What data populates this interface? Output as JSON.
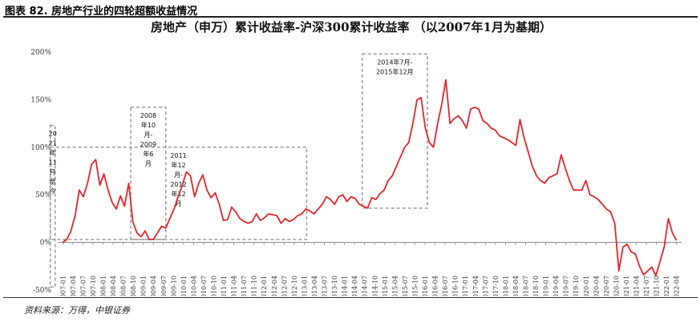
{
  "header": {
    "figure_title": "图表 82. 房地产行业的四轮超额收益情况"
  },
  "footer": {
    "source": "资料来源：万得，中银证券"
  },
  "colors": {
    "line": "#e0262b",
    "box": "#999999"
  },
  "chart_data": {
    "type": "line",
    "title": "房地产（申万）累计收益率-沪深300累计收益率   （以2007年1月为基期）",
    "y_tick_labels": [
      "-50%",
      "0%",
      "50%",
      "100%",
      "150%",
      "200%"
    ],
    "ylim": [
      -0.5,
      2.0
    ],
    "x_tick_labels": [
      "2007-01",
      "2007-04",
      "2007-07",
      "2007-10",
      "2008-01",
      "2008-04",
      "2008-07",
      "2008-10",
      "2009-01",
      "2009-04",
      "2009-07",
      "2009-10",
      "2010-01",
      "2010-04",
      "2010-07",
      "2010-10",
      "2011-01",
      "2011-04",
      "2011-07",
      "2011-10",
      "2012-01",
      "2012-04",
      "2012-07",
      "2012-10",
      "2013-01",
      "2013-04",
      "2013-07",
      "2013-10",
      "2014-01",
      "2014-04",
      "2014-07",
      "2014-10",
      "2015-01",
      "2015-04",
      "2015-07",
      "2015-10",
      "2016-01",
      "2016-04",
      "2016-07",
      "2016-10",
      "2017-01",
      "2017-04",
      "2017-07",
      "2017-10",
      "2018-01",
      "2018-04",
      "2018-07",
      "2018-10",
      "2019-01",
      "2019-04",
      "2019-07",
      "2019-10",
      "2020-01",
      "2020-04",
      "2020-07",
      "2020-10",
      "2021-01",
      "2021-04",
      "2021-07",
      "2021-10",
      "2022-01",
      "2022-04"
    ],
    "grid": false,
    "series": [
      {
        "values": [
          [
            0,
            0.0
          ],
          [
            1,
            0.03
          ],
          [
            2,
            0.12
          ],
          [
            3,
            0.28
          ],
          [
            4,
            0.55
          ],
          [
            5,
            0.48
          ],
          [
            6,
            0.62
          ],
          [
            7,
            0.82
          ],
          [
            8,
            0.87
          ],
          [
            9,
            0.6
          ],
          [
            10,
            0.72
          ],
          [
            11,
            0.55
          ],
          [
            12,
            0.42
          ],
          [
            13,
            0.35
          ],
          [
            14,
            0.49
          ],
          [
            15,
            0.38
          ],
          [
            16,
            0.62
          ],
          [
            17,
            0.22
          ],
          [
            18,
            0.1
          ],
          [
            19,
            0.06
          ],
          [
            20,
            0.12
          ],
          [
            21,
            0.03
          ],
          [
            22,
            0.03
          ],
          [
            23,
            0.1
          ],
          [
            24,
            0.17
          ],
          [
            25,
            0.15
          ],
          [
            26,
            0.25
          ],
          [
            27,
            0.35
          ],
          [
            28,
            0.48
          ],
          [
            29,
            0.6
          ],
          [
            30,
            0.74
          ],
          [
            31,
            0.7
          ],
          [
            32,
            0.48
          ],
          [
            33,
            0.62
          ],
          [
            34,
            0.71
          ],
          [
            35,
            0.55
          ],
          [
            36,
            0.47
          ],
          [
            37,
            0.52
          ],
          [
            38,
            0.4
          ],
          [
            39,
            0.23
          ],
          [
            40,
            0.24
          ],
          [
            41,
            0.37
          ],
          [
            42,
            0.32
          ],
          [
            43,
            0.25
          ],
          [
            44,
            0.22
          ],
          [
            45,
            0.2
          ],
          [
            46,
            0.22
          ],
          [
            47,
            0.3
          ],
          [
            48,
            0.23
          ],
          [
            49,
            0.26
          ],
          [
            50,
            0.3
          ],
          [
            51,
            0.29
          ],
          [
            52,
            0.28
          ],
          [
            53,
            0.2
          ],
          [
            54,
            0.25
          ],
          [
            55,
            0.22
          ],
          [
            56,
            0.24
          ],
          [
            57,
            0.28
          ],
          [
            58,
            0.3
          ],
          [
            59,
            0.35
          ],
          [
            60,
            0.33
          ],
          [
            61,
            0.3
          ],
          [
            62,
            0.35
          ],
          [
            63,
            0.4
          ],
          [
            64,
            0.48
          ],
          [
            65,
            0.45
          ],
          [
            66,
            0.4
          ],
          [
            67,
            0.48
          ],
          [
            68,
            0.5
          ],
          [
            69,
            0.43
          ],
          [
            70,
            0.48
          ],
          [
            71,
            0.46
          ],
          [
            72,
            0.4
          ],
          [
            73,
            0.38
          ],
          [
            74,
            0.36
          ],
          [
            75,
            0.47
          ],
          [
            76,
            0.45
          ],
          [
            77,
            0.51
          ],
          [
            78,
            0.55
          ],
          [
            79,
            0.65
          ],
          [
            80,
            0.7
          ],
          [
            81,
            0.8
          ],
          [
            82,
            0.9
          ],
          [
            83,
            1.0
          ],
          [
            84,
            1.05
          ],
          [
            85,
            1.25
          ],
          [
            86,
            1.5
          ],
          [
            87,
            1.52
          ],
          [
            88,
            1.2
          ],
          [
            89,
            1.05
          ],
          [
            90,
            1.0
          ],
          [
            91,
            1.25
          ],
          [
            92,
            1.45
          ],
          [
            93,
            1.71
          ],
          [
            94,
            1.25
          ],
          [
            95,
            1.3
          ],
          [
            96,
            1.33
          ],
          [
            97,
            1.28
          ],
          [
            98,
            1.2
          ],
          [
            99,
            1.4
          ],
          [
            100,
            1.42
          ],
          [
            101,
            1.4
          ],
          [
            102,
            1.28
          ],
          [
            103,
            1.25
          ],
          [
            104,
            1.2
          ],
          [
            105,
            1.18
          ],
          [
            106,
            1.12
          ],
          [
            107,
            1.1
          ],
          [
            108,
            1.08
          ],
          [
            109,
            1.05
          ],
          [
            110,
            1.02
          ],
          [
            111,
            1.29
          ],
          [
            112,
            1.1
          ],
          [
            113,
            0.95
          ],
          [
            114,
            0.8
          ],
          [
            115,
            0.7
          ],
          [
            116,
            0.65
          ],
          [
            117,
            0.62
          ],
          [
            118,
            0.68
          ],
          [
            119,
            0.7
          ],
          [
            120,
            0.72
          ],
          [
            121,
            0.92
          ],
          [
            122,
            0.78
          ],
          [
            123,
            0.65
          ],
          [
            124,
            0.55
          ],
          [
            125,
            0.55
          ],
          [
            126,
            0.55
          ],
          [
            127,
            0.65
          ],
          [
            128,
            0.5
          ],
          [
            129,
            0.48
          ],
          [
            130,
            0.45
          ],
          [
            131,
            0.4
          ],
          [
            132,
            0.35
          ],
          [
            133,
            0.32
          ],
          [
            134,
            0.2
          ],
          [
            135,
            -0.3
          ],
          [
            136,
            -0.05
          ],
          [
            137,
            -0.02
          ],
          [
            138,
            -0.1
          ],
          [
            139,
            -0.12
          ],
          [
            140,
            -0.25
          ],
          [
            141,
            -0.34
          ],
          [
            142,
            -0.3
          ],
          [
            143,
            -0.26
          ],
          [
            144,
            -0.35
          ],
          [
            145,
            -0.2
          ],
          [
            146,
            -0.05
          ],
          [
            147,
            0.25
          ],
          [
            148,
            0.1
          ],
          [
            149,
            0.02
          ]
        ]
      }
    ],
    "annotations": [
      {
        "lines": [
          "2008",
          "年10",
          "月-",
          "2009",
          "年6",
          "月"
        ],
        "x_from": "2008-10",
        "x_to": "2009-07",
        "y_top": 1.42,
        "y_bottom": 0.03
      },
      {
        "lines": [
          "2011",
          "年12",
          "月-",
          "2012",
          "年12",
          "月"
        ],
        "x_from": "2011-12",
        "x_to": "2013-01",
        "y_top": 1.0,
        "y_bottom": 0.03
      },
      {
        "lines": [
          "2014年7月-",
          "2015年12月"
        ],
        "x_from": "2014-07",
        "x_to": "2016-01",
        "y_top": 1.98,
        "y_bottom": 0.36
      },
      {
        "lines": [
          "20",
          "21",
          "年",
          "11",
          "月",
          "至",
          "今"
        ],
        "x_from": "2021-11",
        "x_to": "2022-06",
        "y_top": 1.23,
        "y_bottom": -0.47
      }
    ]
  }
}
